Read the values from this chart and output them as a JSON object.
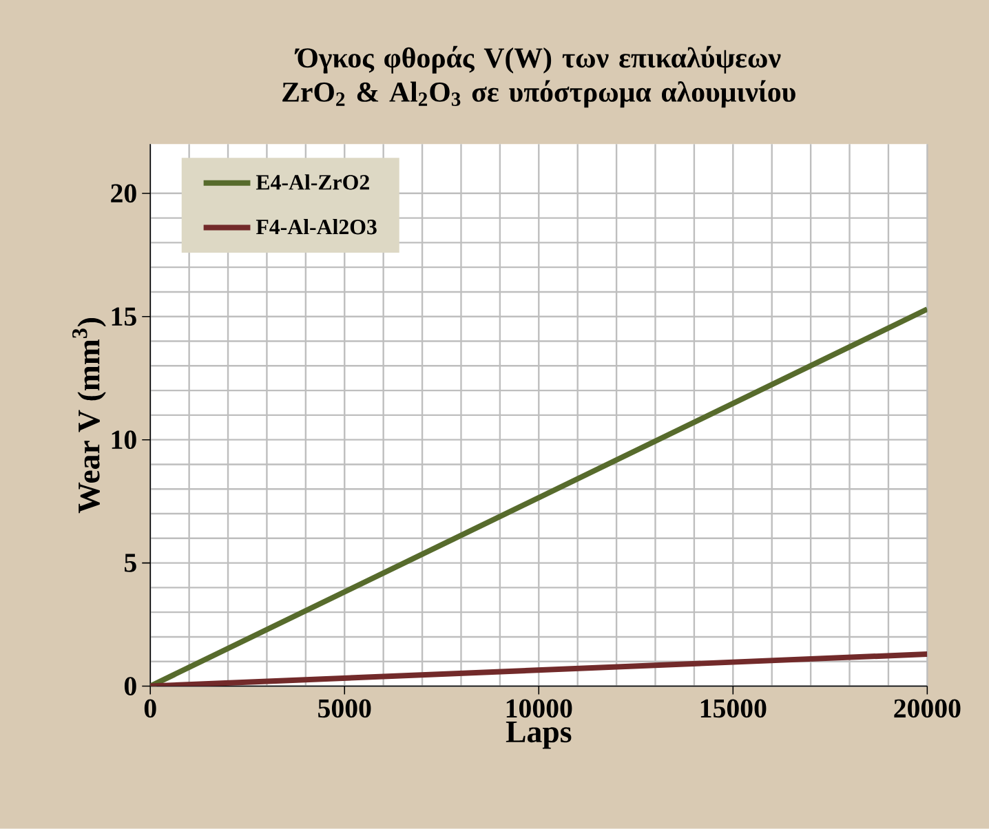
{
  "chart_data": {
    "type": "line",
    "title": "Όγκος φθοράς V(W) των επικαλύψεων ZrO$_{2}$ & Al$_{2}$O$_{3}$ σε υπόστρωμα αλουμινίου",
    "xlabel": "Laps",
    "ylabel": "Wear V (mm$^{3}$)",
    "x": [
      0,
      20000
    ],
    "series": [
      {
        "name": "E4-Al-ZrO2",
        "color": "#576b2c",
        "values": [
          0,
          15.3
        ]
      },
      {
        "name": "F4-Al-Al2O3",
        "color": "#722a2a",
        "values": [
          0,
          1.3
        ]
      }
    ],
    "xlim": [
      0,
      20000
    ],
    "xticks": [
      0,
      5000,
      10000,
      15000,
      20000
    ],
    "ylim": [
      0,
      22
    ],
    "yticks": [
      0,
      5,
      10,
      15,
      20
    ],
    "grid": true,
    "legend": "top left",
    "marker": "none",
    "line_style": "solid"
  }
}
